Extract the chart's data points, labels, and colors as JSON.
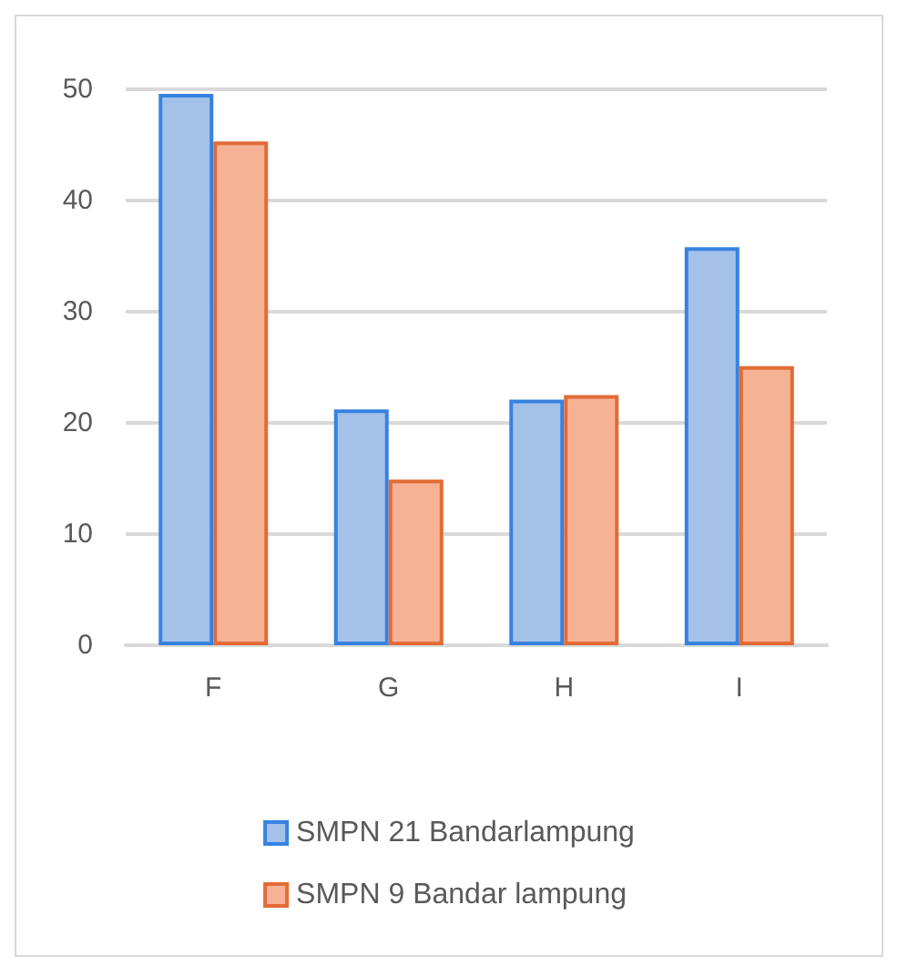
{
  "chart_data": {
    "type": "bar",
    "categories": [
      "F",
      "G",
      "H",
      "I"
    ],
    "series": [
      {
        "name": "SMPN 21 Bandarlampung",
        "color": "#a4c2e8",
        "values": [
          49.6,
          21.2,
          22.1,
          35.8
        ]
      },
      {
        "name": "SMPN 9 Bandar lampung",
        "color": "#f6b294",
        "values": [
          45.3,
          14.9,
          22.5,
          25.1
        ]
      }
    ],
    "ylim": [
      0,
      50
    ],
    "yticks": [
      0,
      10,
      20,
      30,
      40,
      50
    ],
    "grid": "y",
    "legend": "bottom"
  }
}
